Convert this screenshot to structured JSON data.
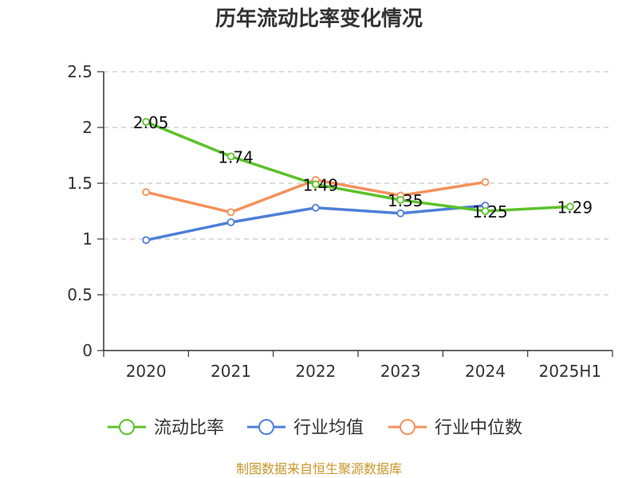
{
  "chart_data": {
    "type": "line",
    "title": "历年流动比率变化情况",
    "categories": [
      "2020",
      "2021",
      "2022",
      "2023",
      "2024",
      "2025H1"
    ],
    "ylim": [
      0,
      2.5
    ],
    "yticks": [
      "0",
      "0.5",
      "1",
      "1.5",
      "2",
      "2.5"
    ],
    "grid": true,
    "legend_position": "bottom",
    "series": [
      {
        "name": "流动比率",
        "color": "#5cc22b",
        "values": [
          2.05,
          1.74,
          1.49,
          1.35,
          1.25,
          1.29
        ],
        "labels": [
          "2.05",
          "1.74",
          "1.49",
          "1.35",
          "1.25",
          "1.29"
        ]
      },
      {
        "name": "行业均值",
        "color": "#4f7fd8",
        "values": [
          0.99,
          1.15,
          1.28,
          1.23,
          1.3,
          null
        ]
      },
      {
        "name": "行业中位数",
        "color": "#f5915a",
        "values": [
          1.42,
          1.24,
          1.53,
          1.39,
          1.51,
          null
        ]
      }
    ],
    "source": "制图数据来自恒生聚源数据库",
    "source_color": "#c8962a"
  }
}
